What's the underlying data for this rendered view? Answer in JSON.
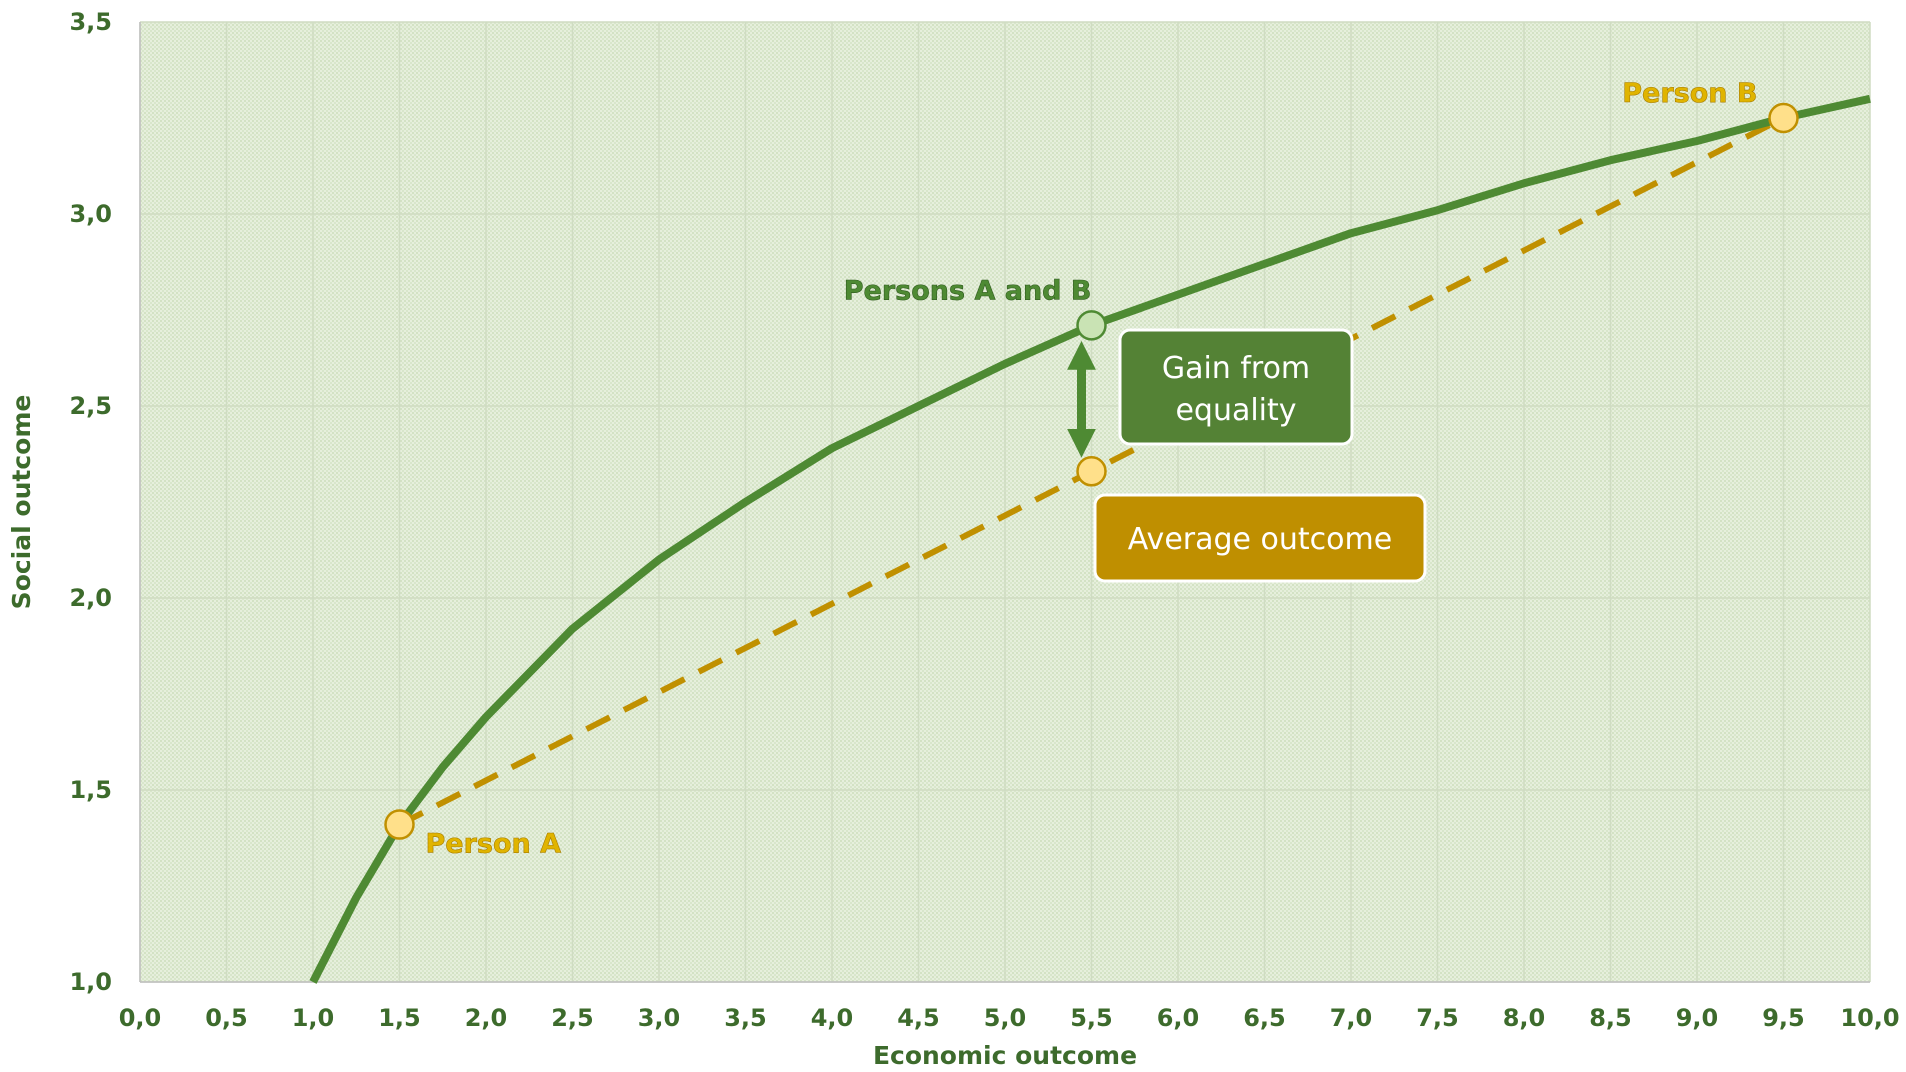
{
  "chart_data": {
    "type": "line",
    "title": "",
    "xlabel": "Economic outcome",
    "ylabel": "Social outcome",
    "xlim": [
      0,
      10
    ],
    "ylim": [
      1,
      3.5
    ],
    "x_ticks": [
      "0,0",
      "0,5",
      "1,0",
      "1,5",
      "2,0",
      "2,5",
      "3,0",
      "3,5",
      "4,0",
      "4,5",
      "5,0",
      "5,5",
      "6,0",
      "6,5",
      "7,0",
      "7,5",
      "8,0",
      "8,5",
      "9,0",
      "9,5",
      "10,0"
    ],
    "y_ticks": [
      "1,0",
      "1,5",
      "2,0",
      "2,5",
      "3,0",
      "3,5"
    ],
    "grid": true,
    "series": [
      {
        "style": "solid",
        "color": "#4e8a33",
        "x": [
          1.0,
          1.25,
          1.5,
          1.75,
          2.0,
          2.5,
          3.0,
          3.5,
          4.0,
          4.5,
          5.0,
          5.5,
          6.0,
          6.5,
          7.0,
          7.5,
          8.0,
          8.5,
          9.0,
          9.5,
          10.0
        ],
        "y": [
          1.0,
          1.22,
          1.41,
          1.56,
          1.69,
          1.92,
          2.1,
          2.25,
          2.39,
          2.5,
          2.61,
          2.71,
          2.79,
          2.87,
          2.95,
          3.01,
          3.08,
          3.14,
          3.19,
          3.25,
          3.3
        ]
      },
      {
        "style": "dashed",
        "color": "#c09000",
        "x": [
          1.5,
          9.5
        ],
        "y": [
          1.41,
          3.25
        ]
      }
    ],
    "points": [
      {
        "label": "Person A",
        "x": 1.5,
        "y": 1.41,
        "color": "#c09000",
        "fill": "#ffe08a"
      },
      {
        "label": "Person B",
        "x": 9.5,
        "y": 3.25,
        "color": "#c09000",
        "fill": "#ffe08a"
      },
      {
        "label": "Persons A and B",
        "x": 5.5,
        "y": 2.71,
        "color": "#4e8a33",
        "fill": "#c9e3b4"
      },
      {
        "label": "",
        "x": 5.5,
        "y": 2.33,
        "color": "#c09000",
        "fill": "#ffe08a"
      }
    ],
    "annotations": [
      {
        "text_lines": [
          "Gain from",
          "equality"
        ],
        "color": "#548235"
      },
      {
        "text_lines": [
          "Average outcome"
        ],
        "color": "#bf8f00"
      }
    ]
  }
}
